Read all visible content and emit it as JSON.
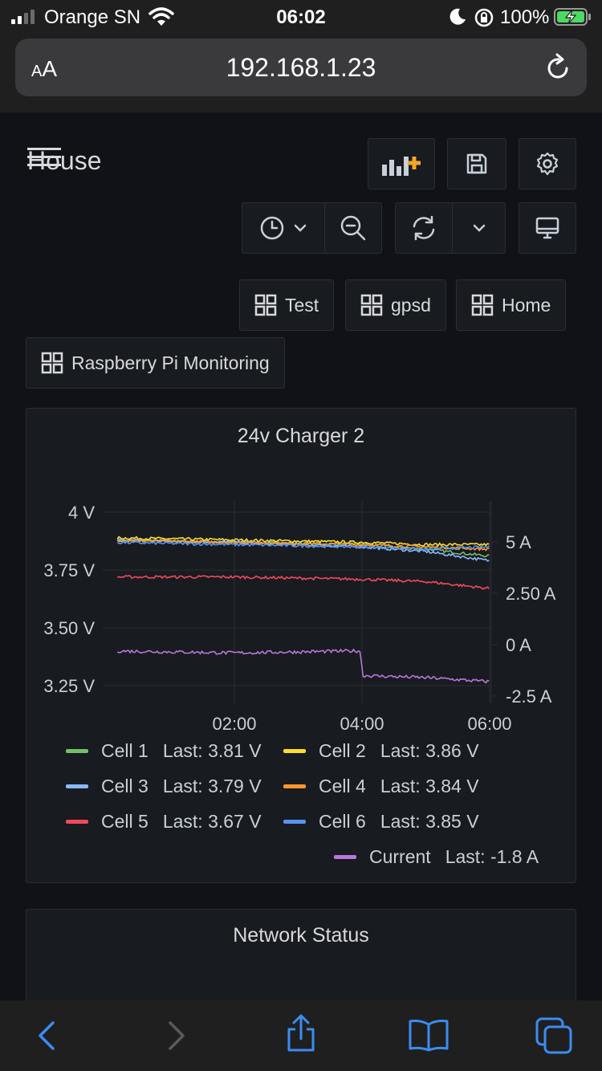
{
  "status_bar": {
    "carrier": "Orange SN",
    "time": "06:02",
    "battery": "100%"
  },
  "browser": {
    "text_size_label": "AA",
    "url": "192.168.1.23"
  },
  "dashboard": {
    "title": "House",
    "links": [
      {
        "label": "Test"
      },
      {
        "label": "gpsd"
      },
      {
        "label": "Home"
      },
      {
        "label": "Raspberry Pi Monitoring"
      }
    ]
  },
  "panels": [
    {
      "title": "24v Charger 2",
      "legend": [
        {
          "name": "Cell 1",
          "last": "Last: 3.81 V",
          "color": "#73bf69"
        },
        {
          "name": "Cell 2",
          "last": "Last: 3.86 V",
          "color": "#fade2a"
        },
        {
          "name": "Cell 3",
          "last": "Last: 3.79 V",
          "color": "#8ab8ff"
        },
        {
          "name": "Cell 4",
          "last": "Last: 3.84 V",
          "color": "#ff9830"
        },
        {
          "name": "Cell 5",
          "last": "Last: 3.67 V",
          "color": "#f2495c"
        },
        {
          "name": "Cell 6",
          "last": "Last: 3.85 V",
          "color": "#5794f2"
        },
        {
          "name": "Current",
          "last": "Last: -1.8 A",
          "color": "#b877d9"
        }
      ]
    },
    {
      "title": "Network Status"
    }
  ],
  "chart_data": {
    "type": "line",
    "title": "24v Charger 2",
    "x_ticks": [
      "02:00",
      "04:00",
      "06:00"
    ],
    "y_left_ticks": [
      "4 V",
      "3.75 V",
      "3.50 V",
      "3.25 V"
    ],
    "y_right_ticks": [
      "5 A",
      "2.50 A",
      "0 A",
      "-2.5 A"
    ],
    "y_left_range": [
      3.2,
      4.0
    ],
    "y_right_range": [
      -2.5,
      5
    ],
    "grid": true,
    "legend_position": "bottom",
    "series": [
      {
        "name": "Cell 1",
        "axis": "left",
        "color": "#73bf69",
        "x": [
          "00:00",
          "02:00",
          "04:00",
          "05:00",
          "06:00"
        ],
        "values": [
          3.88,
          3.87,
          3.86,
          3.84,
          3.81
        ]
      },
      {
        "name": "Cell 2",
        "axis": "left",
        "color": "#fade2a",
        "x": [
          "00:00",
          "02:00",
          "04:00",
          "05:00",
          "06:00"
        ],
        "values": [
          3.89,
          3.88,
          3.87,
          3.86,
          3.86
        ]
      },
      {
        "name": "Cell 3",
        "axis": "left",
        "color": "#8ab8ff",
        "x": [
          "00:00",
          "02:00",
          "04:00",
          "05:00",
          "06:00"
        ],
        "values": [
          3.88,
          3.87,
          3.85,
          3.83,
          3.79
        ]
      },
      {
        "name": "Cell 4",
        "axis": "left",
        "color": "#ff9830",
        "x": [
          "00:00",
          "02:00",
          "04:00",
          "05:00",
          "06:00"
        ],
        "values": [
          3.88,
          3.87,
          3.86,
          3.85,
          3.84
        ]
      },
      {
        "name": "Cell 5",
        "axis": "left",
        "color": "#f2495c",
        "x": [
          "00:00",
          "02:00",
          "04:00",
          "05:00",
          "06:00"
        ],
        "values": [
          3.72,
          3.72,
          3.71,
          3.7,
          3.67
        ]
      },
      {
        "name": "Cell 6",
        "axis": "left",
        "color": "#5794f2",
        "x": [
          "00:00",
          "02:00",
          "04:00",
          "05:00",
          "06:00"
        ],
        "values": [
          3.87,
          3.86,
          3.85,
          3.84,
          3.85
        ]
      },
      {
        "name": "Current",
        "axis": "right",
        "color": "#b877d9",
        "x": [
          "00:00",
          "02:00",
          "03:59",
          "04:00",
          "05:00",
          "06:00"
        ],
        "values": [
          -0.3,
          -0.4,
          -0.3,
          -1.5,
          -1.6,
          -1.8
        ]
      }
    ]
  }
}
